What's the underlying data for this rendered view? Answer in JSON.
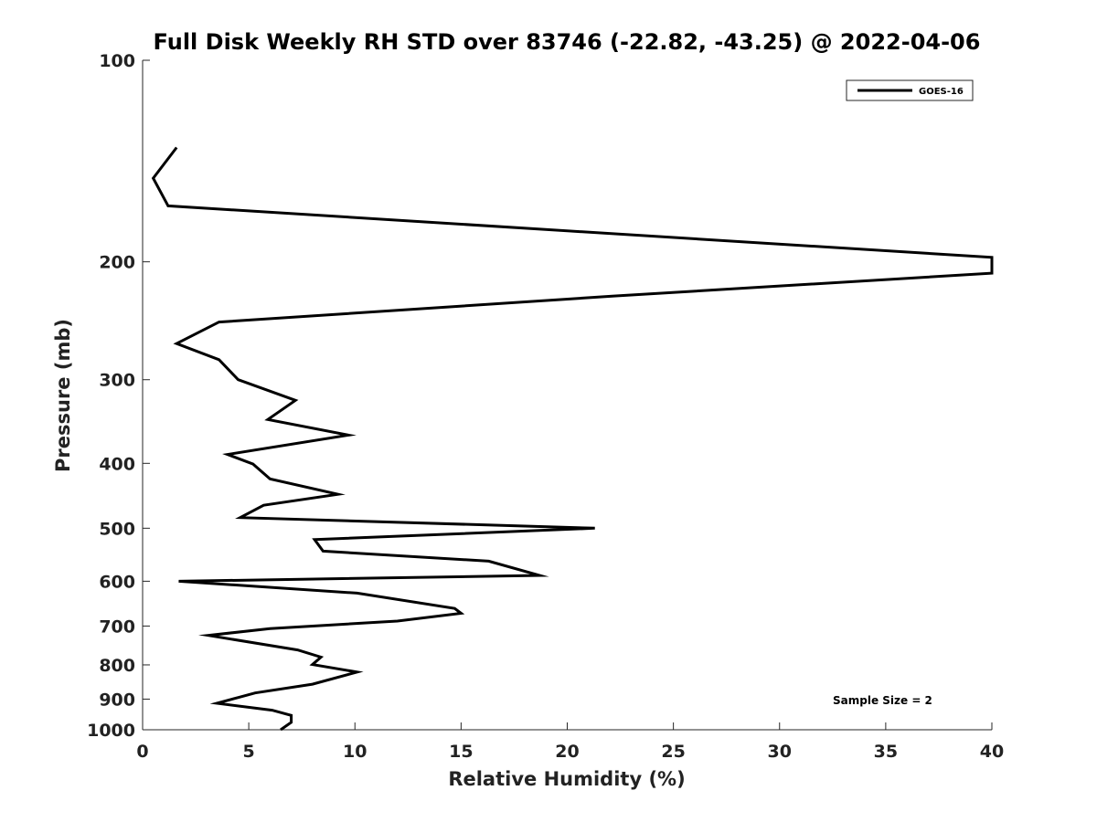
{
  "chart_data": {
    "type": "line",
    "title": "Full Disk Weekly RH STD over 83746 (-22.82, -43.25) @ 2022-04-06",
    "xlabel": "Relative Humidity (%)",
    "ylabel": "Pressure (mb)",
    "xlim": [
      0,
      40
    ],
    "ylim": [
      100,
      1000
    ],
    "y_scale": "log",
    "y_reversed": true,
    "grid": false,
    "legend_position": "top-right",
    "x_ticks": [
      0,
      5,
      10,
      15,
      20,
      25,
      30,
      35,
      40
    ],
    "y_ticks": [
      100,
      200,
      300,
      400,
      500,
      600,
      700,
      800,
      900,
      1000
    ],
    "annotation": "Sample Size = 2",
    "line_color": "#000000",
    "series": [
      {
        "name": "GOES-16",
        "x": [
          1.6,
          0.5,
          1.2,
          40.0,
          40.0,
          22.2,
          3.6,
          1.6,
          3.6,
          4.5,
          7.2,
          5.9,
          9.7,
          4.0,
          5.2,
          6.0,
          9.2,
          5.7,
          4.6,
          21.3,
          8.1,
          8.5,
          16.3,
          18.7,
          1.7,
          10.1,
          14.7,
          15.0,
          12.0,
          6.0,
          3.1,
          7.3,
          8.4,
          8.0,
          10.1,
          8.0,
          5.3,
          3.5,
          6.1,
          7.0,
          7.0,
          6.5
        ],
        "y": [
          135,
          150,
          165,
          197,
          208,
          225,
          246,
          265,
          280,
          300,
          322,
          344,
          363,
          388,
          401,
          422,
          445,
          462,
          482,
          500,
          520,
          541,
          560,
          588,
          600,
          625,
          659,
          670,
          688,
          706,
          723,
          760,
          779,
          799,
          820,
          855,
          881,
          913,
          935,
          952,
          975,
          1000
        ]
      }
    ]
  }
}
